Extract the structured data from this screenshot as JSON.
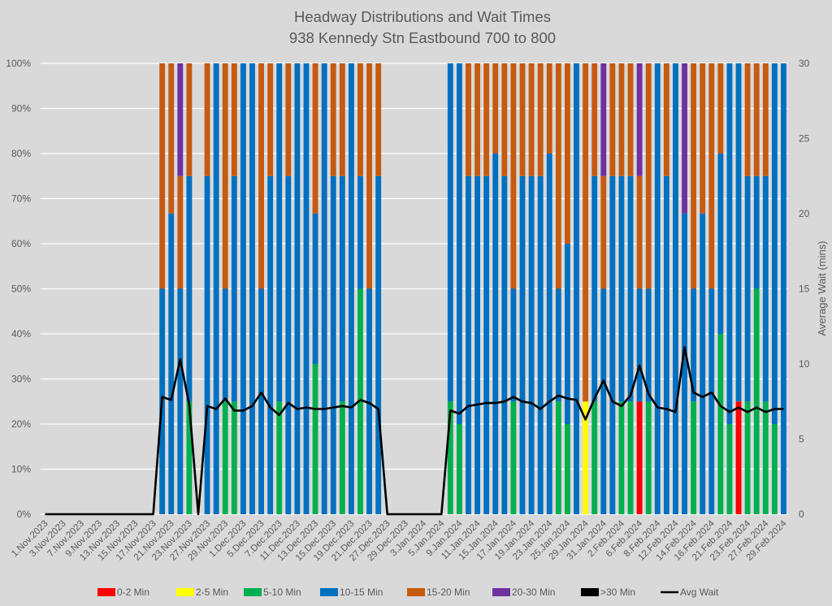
{
  "chart_data": {
    "type": "bar",
    "stacked": true,
    "percent_stacked": true,
    "title": "Headway Distributions and Wait Times",
    "subtitle": "938  Kennedy Stn Eastbound 700 to 800",
    "xlabel": "",
    "ylabel": "",
    "y2label": "Average Wait (mins)",
    "ylim": [
      0,
      100
    ],
    "y2lim": [
      0,
      30
    ],
    "yticks": [
      "0%",
      "10%",
      "20%",
      "30%",
      "40%",
      "50%",
      "60%",
      "70%",
      "80%",
      "90%",
      "100%"
    ],
    "y2ticks": [
      "0",
      "5",
      "10",
      "15",
      "20",
      "25",
      "30"
    ],
    "grid": true,
    "legend_position": "bottom",
    "categories": [
      "1.Nov.2023",
      "2.Nov.2023",
      "3.Nov.2023",
      "6.Nov.2023",
      "7.Nov.2023",
      "8.Nov.2023",
      "9.Nov.2023",
      "10.Nov.2023",
      "13.Nov.2023",
      "14.Nov.2023",
      "15.Nov.2023",
      "16.Nov.2023",
      "17.Nov.2023",
      "20.Nov.2023",
      "21.Nov.2023",
      "22.Nov.2023",
      "23.Nov.2023",
      "24.Nov.2023",
      "27.Nov.2023",
      "28.Nov.2023",
      "29.Nov.2023",
      "30.Nov.2023",
      "1.Dec.2023",
      "4.Dec.2023",
      "5.Dec.2023",
      "6.Dec.2023",
      "7.Dec.2023",
      "8.Dec.2023",
      "11.Dec.2023",
      "12.Dec.2023",
      "13.Dec.2023",
      "14.Dec.2023",
      "15.Dec.2023",
      "18.Dec.2023",
      "19.Dec.2023",
      "20.Dec.2023",
      "21.Dec.2023",
      "22.Dec.2023",
      "27.Dec.2023",
      "28.Dec.2023",
      "29.Dec.2023",
      "2.Jan.2024",
      "3.Jan.2024",
      "4.Jan.2024",
      "5.Jan.2024",
      "8.Jan.2024",
      "9.Jan.2024",
      "10.Jan.2024",
      "11.Jan.2024",
      "12.Jan.2024",
      "15.Jan.2024",
      "16.Jan.2024",
      "17.Jan.2024",
      "18.Jan.2024",
      "19.Jan.2024",
      "22.Jan.2024",
      "23.Jan.2024",
      "24.Jan.2024",
      "25.Jan.2024",
      "26.Jan.2024",
      "29.Jan.2024",
      "30.Jan.2024",
      "31.Jan.2024",
      "1.Feb.2024",
      "2.Feb.2024",
      "5.Feb.2024",
      "6.Feb.2024",
      "7.Feb.2024",
      "8.Feb.2024",
      "9.Feb.2024",
      "12.Feb.2024",
      "13.Feb.2024",
      "14.Feb.2024",
      "15.Feb.2024",
      "16.Feb.2024",
      "20.Feb.2024",
      "21.Feb.2024",
      "22.Feb.2024",
      "23.Feb.2024",
      "26.Feb.2024",
      "27.Feb.2024",
      "28.Feb.2024",
      "29.Feb.2024"
    ],
    "label_every": 2,
    "series": [
      {
        "name": "0-2 Min",
        "color": "#ff0000",
        "values": [
          0,
          0,
          0,
          0,
          0,
          0,
          0,
          0,
          0,
          0,
          0,
          0,
          0,
          0,
          0,
          0,
          0,
          0,
          0,
          0,
          0,
          0,
          0,
          0,
          0,
          0,
          0,
          0,
          0,
          0,
          0,
          0,
          0,
          0,
          0,
          0,
          0,
          0,
          0,
          0,
          0,
          0,
          0,
          0,
          0,
          0,
          0,
          0,
          0,
          0,
          0,
          0,
          0,
          0,
          0,
          0,
          0,
          0,
          0,
          0,
          0,
          0,
          0,
          0,
          0,
          0,
          25,
          0,
          0,
          0,
          0,
          0,
          0,
          0,
          0,
          0,
          0,
          25,
          0,
          0,
          0,
          0,
          0
        ]
      },
      {
        "name": "2-5 Min",
        "color": "#ffff00",
        "values": [
          0,
          0,
          0,
          0,
          0,
          0,
          0,
          0,
          0,
          0,
          0,
          0,
          0,
          0,
          0,
          0,
          0,
          0,
          0,
          0,
          0,
          0,
          0,
          0,
          0,
          0,
          0,
          0,
          0,
          0,
          0,
          0,
          0,
          0,
          0,
          0,
          0,
          0,
          0,
          0,
          0,
          0,
          0,
          0,
          0,
          0,
          0,
          0,
          0,
          0,
          0,
          0,
          0,
          0,
          0,
          0,
          0,
          0,
          0,
          0,
          25,
          0,
          0,
          0,
          0,
          0,
          0,
          0,
          0,
          0,
          0,
          0,
          0,
          0,
          0,
          0,
          0,
          0,
          0,
          0,
          0,
          0,
          0
        ]
      },
      {
        "name": "5-10 Min",
        "color": "#00b050",
        "values": [
          0,
          0,
          0,
          0,
          0,
          0,
          0,
          0,
          0,
          0,
          0,
          0,
          0,
          0,
          0,
          0,
          25,
          0,
          0,
          0,
          25,
          25,
          0,
          0,
          0,
          0,
          25,
          0,
          0,
          0,
          33.3,
          0,
          0,
          25,
          0,
          50,
          0,
          0,
          0,
          0,
          0,
          0,
          0,
          0,
          0,
          25,
          20,
          0,
          0,
          0,
          0,
          0,
          25,
          0,
          0,
          0,
          0,
          25,
          20,
          0,
          0,
          25,
          0,
          0,
          25,
          25,
          0,
          25,
          0,
          0,
          0,
          0,
          25,
          0,
          0,
          40,
          20,
          0,
          25,
          50,
          25,
          20,
          0
        ]
      },
      {
        "name": "10-15 Min",
        "color": "#0070c0",
        "values": [
          0,
          0,
          0,
          0,
          0,
          0,
          0,
          0,
          0,
          0,
          0,
          0,
          0,
          50,
          66.7,
          50,
          50,
          0,
          75,
          100,
          25,
          50,
          100,
          100,
          50,
          75,
          75,
          75,
          100,
          100,
          33.4,
          100,
          75,
          50,
          100,
          25,
          50,
          75,
          0,
          0,
          0,
          0,
          0,
          0,
          0,
          75,
          80,
          75,
          75,
          75,
          80,
          75,
          25,
          75,
          75,
          75,
          80,
          25,
          40,
          100,
          0,
          50,
          50,
          75,
          50,
          50,
          25,
          25,
          100,
          75,
          100,
          66.7,
          25,
          66.7,
          50,
          40,
          80,
          75,
          50,
          25,
          50,
          80,
          100
        ]
      },
      {
        "name": "15-20 Min",
        "color": "#c55a11",
        "values": [
          0,
          0,
          0,
          0,
          0,
          0,
          0,
          0,
          0,
          0,
          0,
          0,
          0,
          50,
          33.3,
          25,
          25,
          0,
          25,
          0,
          50,
          25,
          0,
          0,
          50,
          25,
          0,
          25,
          0,
          0,
          33.3,
          0,
          25,
          25,
          0,
          25,
          50,
          25,
          0,
          0,
          0,
          0,
          0,
          0,
          0,
          0,
          0,
          25,
          25,
          25,
          20,
          25,
          50,
          25,
          25,
          25,
          20,
          50,
          40,
          0,
          75,
          25,
          25,
          25,
          25,
          25,
          25,
          50,
          0,
          25,
          0,
          0,
          50,
          33.3,
          50,
          20,
          0,
          0,
          25,
          25,
          25,
          0,
          0
        ]
      },
      {
        "name": "20-30 Min",
        "color": "#7030a0",
        "values": [
          0,
          0,
          0,
          0,
          0,
          0,
          0,
          0,
          0,
          0,
          0,
          0,
          0,
          0,
          0,
          25,
          0,
          0,
          0,
          0,
          0,
          0,
          0,
          0,
          0,
          0,
          0,
          0,
          0,
          0,
          0,
          0,
          0,
          0,
          0,
          0,
          0,
          0,
          0,
          0,
          0,
          0,
          0,
          0,
          0,
          0,
          0,
          0,
          0,
          0,
          0,
          0,
          0,
          0,
          0,
          0,
          0,
          0,
          0,
          0,
          0,
          25,
          25,
          0,
          0,
          0,
          25,
          0,
          0,
          0,
          0,
          33.3,
          0,
          0,
          0,
          0,
          0,
          0,
          0,
          0,
          0,
          0,
          0
        ]
      },
      {
        "name": ">30 Min",
        "color": "#000000",
        "values": [
          0,
          0,
          0,
          0,
          0,
          0,
          0,
          0,
          0,
          0,
          0,
          0,
          0,
          0,
          0,
          0,
          0,
          0,
          0,
          0,
          0,
          0,
          0,
          0,
          0,
          0,
          0,
          0,
          0,
          0,
          0,
          0,
          0,
          0,
          0,
          0,
          0,
          0,
          0,
          0,
          0,
          0,
          0,
          0,
          0,
          0,
          0,
          0,
          0,
          0,
          0,
          0,
          0,
          0,
          0,
          0,
          0,
          0,
          0,
          0,
          0,
          0,
          0,
          0,
          0,
          0,
          0,
          0,
          0,
          0,
          0,
          0,
          0,
          0,
          0,
          0,
          0,
          0,
          0,
          0,
          0,
          0,
          0
        ]
      }
    ],
    "line_series": {
      "name": "Avg Wait",
      "color": "#000000",
      "axis": "right",
      "values": [
        0,
        0,
        0,
        0,
        0,
        0,
        0,
        0,
        0,
        0,
        0,
        0,
        0,
        7.8,
        7.6,
        10.3,
        7.3,
        0,
        7.2,
        7.0,
        7.7,
        6.9,
        6.9,
        7.2,
        8.1,
        7.1,
        6.6,
        7.4,
        7.0,
        7.1,
        7.0,
        7.0,
        7.1,
        7.2,
        7.1,
        7.6,
        7.4,
        7.0,
        0,
        0,
        0,
        0,
        0,
        0,
        0,
        6.9,
        6.7,
        7.2,
        7.3,
        7.4,
        7.4,
        7.5,
        7.8,
        7.5,
        7.4,
        7.0,
        7.5,
        7.9,
        7.7,
        7.6,
        6.3,
        7.7,
        8.9,
        7.5,
        7.2,
        7.9,
        9.9,
        8.0,
        7.1,
        7.0,
        6.8,
        11.1,
        8.1,
        7.8,
        8.1,
        7.2,
        6.8,
        7.1,
        6.8,
        7.1,
        6.8,
        7.0,
        7.0
      ]
    }
  }
}
